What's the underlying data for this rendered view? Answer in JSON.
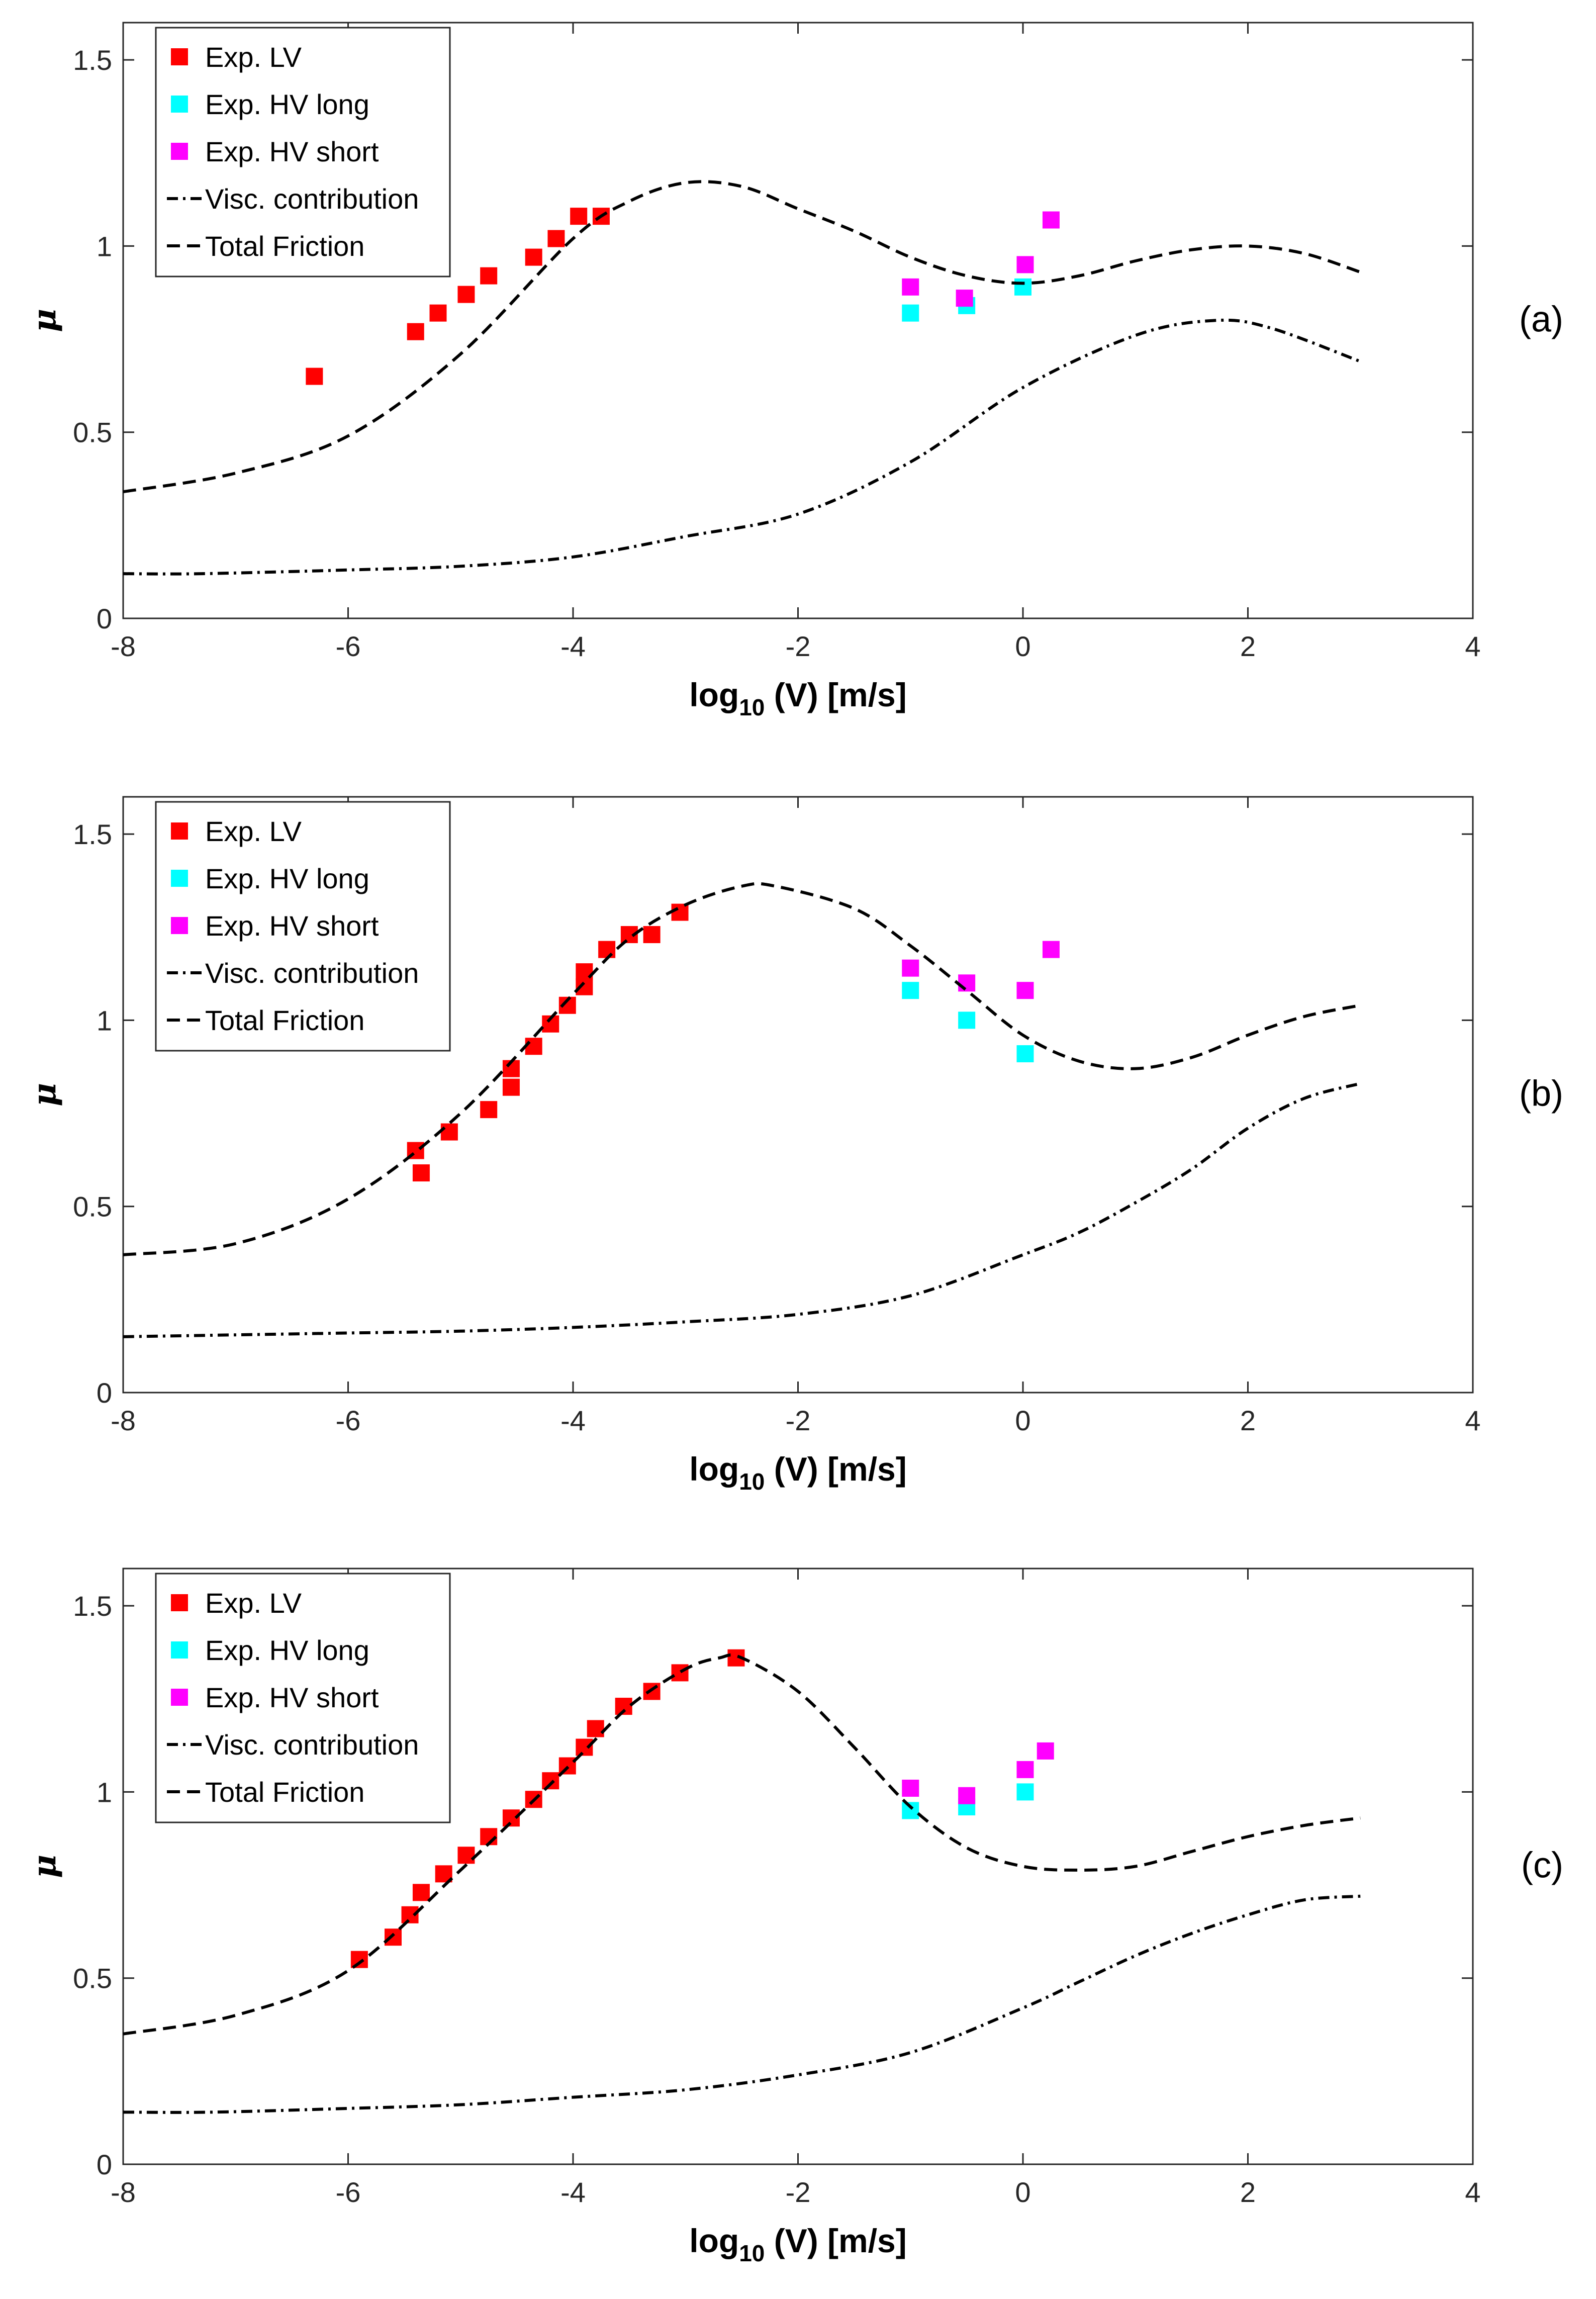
{
  "chart_data": [
    {
      "type": "line",
      "panel_label": "(a)",
      "xlabel_base": "log",
      "xlabel_sub": "10",
      "xlabel_rest": " (V) [m/s]",
      "ylabel": "μ",
      "xlim": [
        -8,
        4
      ],
      "ylim": [
        0,
        1.6
      ],
      "xticks": [
        "-8",
        "-6",
        "-4",
        "-2",
        "0",
        "2",
        "4"
      ],
      "yticks": [
        "0",
        "0.5",
        "1",
        "1.5"
      ],
      "legend": [
        "Exp. LV",
        "Exp. HV long",
        "Exp. HV short",
        "Visc. contribution",
        "Total Friction"
      ],
      "series": [
        {
          "name": "Exp. LV",
          "kind": "scatter",
          "color": "#ff0000",
          "x": [
            -6.3,
            -5.4,
            -5.2,
            -4.95,
            -4.75,
            -4.35,
            -4.15,
            -3.95,
            -3.75
          ],
          "y": [
            0.65,
            0.77,
            0.82,
            0.87,
            0.92,
            0.97,
            1.02,
            1.08,
            1.08
          ]
        },
        {
          "name": "Exp. HV long",
          "kind": "scatter",
          "color": "#00ffff",
          "x": [
            -1.0,
            -0.5,
            0.0
          ],
          "y": [
            0.82,
            0.84,
            0.89
          ]
        },
        {
          "name": "Exp. HV short",
          "kind": "scatter",
          "color": "#ff00ff",
          "x": [
            -1.0,
            -0.52,
            0.02,
            0.25
          ],
          "y": [
            0.89,
            0.86,
            0.95,
            1.07
          ]
        },
        {
          "name": "Visc. contribution",
          "kind": "line",
          "dash": "dashdot",
          "x": [
            -8,
            -7.3,
            -6,
            -5,
            -4,
            -3,
            -2,
            -1,
            0,
            1,
            1.7,
            2.2,
            3
          ],
          "y": [
            0.12,
            0.12,
            0.13,
            0.14,
            0.165,
            0.22,
            0.28,
            0.42,
            0.62,
            0.76,
            0.8,
            0.78,
            0.69
          ]
        },
        {
          "name": "Total Friction",
          "kind": "line",
          "dash": "dashed",
          "x": [
            -8,
            -7,
            -6,
            -5,
            -4,
            -3.5,
            -3,
            -2.5,
            -2,
            -1.5,
            -1,
            -0.5,
            0,
            0.5,
            1,
            1.5,
            2,
            2.5,
            3
          ],
          "y": [
            0.34,
            0.39,
            0.49,
            0.71,
            1.02,
            1.12,
            1.17,
            1.16,
            1.1,
            1.04,
            0.97,
            0.92,
            0.9,
            0.92,
            0.96,
            0.99,
            1.0,
            0.98,
            0.93
          ]
        }
      ]
    },
    {
      "type": "line",
      "panel_label": "(b)",
      "xlabel_base": "log",
      "xlabel_sub": "10",
      "xlabel_rest": " (V) [m/s]",
      "ylabel": "μ",
      "xlim": [
        -8,
        4
      ],
      "ylim": [
        0,
        1.6
      ],
      "xticks": [
        "-8",
        "-6",
        "-4",
        "-2",
        "0",
        "2",
        "4"
      ],
      "yticks": [
        "0",
        "0.5",
        "1",
        "1.5"
      ],
      "legend": [
        "Exp. LV",
        "Exp. HV long",
        "Exp. HV short",
        "Visc. contribution",
        "Total Friction"
      ],
      "series": [
        {
          "name": "Exp. LV",
          "kind": "scatter",
          "color": "#ff0000",
          "x": [
            -5.4,
            -5.35,
            -5.1,
            -4.75,
            -4.55,
            -4.55,
            -4.35,
            -4.2,
            -4.05,
            -3.9,
            -3.9,
            -3.7,
            -3.5,
            -3.3,
            -3.05
          ],
          "y": [
            0.65,
            0.59,
            0.7,
            0.76,
            0.82,
            0.87,
            0.93,
            0.99,
            1.04,
            1.09,
            1.13,
            1.19,
            1.23,
            1.23,
            1.29
          ]
        },
        {
          "name": "Exp. HV long",
          "kind": "scatter",
          "color": "#00ffff",
          "x": [
            -1.0,
            -0.5,
            0.02
          ],
          "y": [
            1.08,
            1.0,
            0.91
          ]
        },
        {
          "name": "Exp. HV short",
          "kind": "scatter",
          "color": "#ff00ff",
          "x": [
            -1.0,
            -0.5,
            0.02,
            0.25
          ],
          "y": [
            1.14,
            1.1,
            1.08,
            1.19
          ]
        },
        {
          "name": "Visc. contribution",
          "kind": "line",
          "dash": "dashdot",
          "x": [
            -8,
            -7,
            -6,
            -5,
            -4,
            -3,
            -2,
            -1,
            0,
            0.5,
            1,
            1.5,
            2,
            2.5,
            3
          ],
          "y": [
            0.15,
            0.155,
            0.16,
            0.165,
            0.175,
            0.19,
            0.21,
            0.26,
            0.37,
            0.43,
            0.51,
            0.6,
            0.71,
            0.79,
            0.83
          ]
        },
        {
          "name": "Total Friction",
          "kind": "line",
          "dash": "dashed",
          "x": [
            -8,
            -7,
            -6,
            -5,
            -4,
            -3.5,
            -3,
            -2.5,
            -2.2,
            -1.5,
            -1,
            -0.5,
            0,
            0.5,
            1,
            1.5,
            2,
            2.5,
            3
          ],
          "y": [
            0.37,
            0.4,
            0.52,
            0.75,
            1.07,
            1.22,
            1.31,
            1.36,
            1.36,
            1.3,
            1.2,
            1.08,
            0.96,
            0.89,
            0.87,
            0.9,
            0.96,
            1.01,
            1.04
          ]
        }
      ]
    },
    {
      "type": "line",
      "panel_label": "(c)",
      "xlabel_base": "log",
      "xlabel_sub": "10",
      "xlabel_rest": " (V) [m/s]",
      "ylabel": "μ",
      "xlim": [
        -8,
        4
      ],
      "ylim": [
        0,
        1.6
      ],
      "xticks": [
        "-8",
        "-6",
        "-4",
        "-2",
        "0",
        "2",
        "4"
      ],
      "yticks": [
        "0",
        "0.5",
        "1",
        "1.5"
      ],
      "legend": [
        "Exp. LV",
        "Exp. HV long",
        "Exp. HV short",
        "Visc. contribution",
        "Total Friction"
      ],
      "series": [
        {
          "name": "Exp. LV",
          "kind": "scatter",
          "color": "#ff0000",
          "x": [
            -5.9,
            -5.6,
            -5.45,
            -5.35,
            -5.15,
            -4.95,
            -4.75,
            -4.55,
            -4.35,
            -4.2,
            -4.05,
            -3.9,
            -3.8,
            -3.55,
            -3.3,
            -3.05,
            -2.55
          ],
          "y": [
            0.55,
            0.61,
            0.67,
            0.73,
            0.78,
            0.83,
            0.88,
            0.93,
            0.98,
            1.03,
            1.07,
            1.12,
            1.17,
            1.23,
            1.27,
            1.32,
            1.36
          ]
        },
        {
          "name": "Exp. HV long",
          "kind": "scatter",
          "color": "#00ffff",
          "x": [
            -1.0,
            -0.5,
            0.02
          ],
          "y": [
            0.95,
            0.96,
            1.0
          ]
        },
        {
          "name": "Exp. HV short",
          "kind": "scatter",
          "color": "#ff00ff",
          "x": [
            -1.0,
            -0.5,
            0.02,
            0.2
          ],
          "y": [
            1.01,
            0.99,
            1.06,
            1.11
          ]
        },
        {
          "name": "Visc. contribution",
          "kind": "line",
          "dash": "dashdot",
          "x": [
            -8,
            -7.2,
            -6,
            -5,
            -4,
            -3,
            -2,
            -1,
            0,
            0.5,
            1,
            1.5,
            2,
            2.5,
            3
          ],
          "y": [
            0.14,
            0.14,
            0.15,
            0.16,
            0.18,
            0.2,
            0.24,
            0.3,
            0.42,
            0.49,
            0.56,
            0.62,
            0.67,
            0.71,
            0.72
          ]
        },
        {
          "name": "Total Friction",
          "kind": "line",
          "dash": "dashed",
          "x": [
            -8,
            -7,
            -6,
            -5,
            -4,
            -3.5,
            -3,
            -2.7,
            -2.5,
            -2,
            -1.5,
            -1,
            -0.5,
            0,
            0.5,
            1,
            1.5,
            2,
            2.5,
            3
          ],
          "y": [
            0.35,
            0.4,
            0.52,
            0.79,
            1.08,
            1.23,
            1.33,
            1.36,
            1.36,
            1.27,
            1.12,
            0.96,
            0.85,
            0.8,
            0.79,
            0.8,
            0.84,
            0.88,
            0.91,
            0.93
          ]
        }
      ]
    }
  ]
}
